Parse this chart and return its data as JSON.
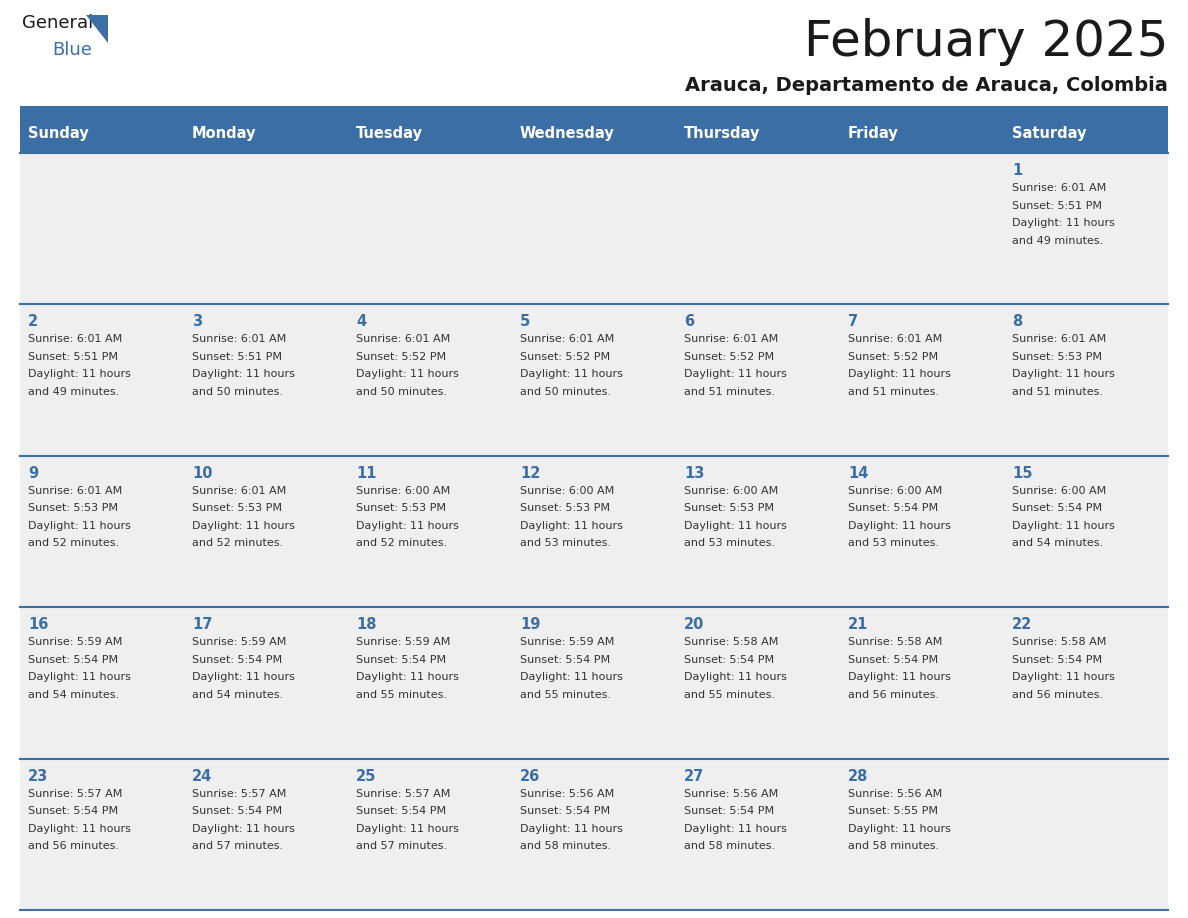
{
  "title": "February 2025",
  "subtitle": "Arauca, Departamento de Arauca, Colombia",
  "days_of_week": [
    "Sunday",
    "Monday",
    "Tuesday",
    "Wednesday",
    "Thursday",
    "Friday",
    "Saturday"
  ],
  "header_bg": "#3b6ea5",
  "header_text": "#ffffff",
  "row_bg_odd": "#efefef",
  "row_bg_even": "#ffffff",
  "date_text_color": "#3b6ea5",
  "info_text_color": "#333333",
  "separator_color": "#3b6ea5",
  "title_color": "#1a1a1a",
  "subtitle_color": "#1a1a1a",
  "logo_general_color": "#1a1a1a",
  "logo_blue_color": "#3b6ea5",
  "logo_triangle_color": "#3b6ea5",
  "calendar": [
    [
      {
        "day": null,
        "info": ""
      },
      {
        "day": null,
        "info": ""
      },
      {
        "day": null,
        "info": ""
      },
      {
        "day": null,
        "info": ""
      },
      {
        "day": null,
        "info": ""
      },
      {
        "day": null,
        "info": ""
      },
      {
        "day": 1,
        "info": "Sunrise: 6:01 AM\nSunset: 5:51 PM\nDaylight: 11 hours\nand 49 minutes."
      }
    ],
    [
      {
        "day": 2,
        "info": "Sunrise: 6:01 AM\nSunset: 5:51 PM\nDaylight: 11 hours\nand 49 minutes."
      },
      {
        "day": 3,
        "info": "Sunrise: 6:01 AM\nSunset: 5:51 PM\nDaylight: 11 hours\nand 50 minutes."
      },
      {
        "day": 4,
        "info": "Sunrise: 6:01 AM\nSunset: 5:52 PM\nDaylight: 11 hours\nand 50 minutes."
      },
      {
        "day": 5,
        "info": "Sunrise: 6:01 AM\nSunset: 5:52 PM\nDaylight: 11 hours\nand 50 minutes."
      },
      {
        "day": 6,
        "info": "Sunrise: 6:01 AM\nSunset: 5:52 PM\nDaylight: 11 hours\nand 51 minutes."
      },
      {
        "day": 7,
        "info": "Sunrise: 6:01 AM\nSunset: 5:52 PM\nDaylight: 11 hours\nand 51 minutes."
      },
      {
        "day": 8,
        "info": "Sunrise: 6:01 AM\nSunset: 5:53 PM\nDaylight: 11 hours\nand 51 minutes."
      }
    ],
    [
      {
        "day": 9,
        "info": "Sunrise: 6:01 AM\nSunset: 5:53 PM\nDaylight: 11 hours\nand 52 minutes."
      },
      {
        "day": 10,
        "info": "Sunrise: 6:01 AM\nSunset: 5:53 PM\nDaylight: 11 hours\nand 52 minutes."
      },
      {
        "day": 11,
        "info": "Sunrise: 6:00 AM\nSunset: 5:53 PM\nDaylight: 11 hours\nand 52 minutes."
      },
      {
        "day": 12,
        "info": "Sunrise: 6:00 AM\nSunset: 5:53 PM\nDaylight: 11 hours\nand 53 minutes."
      },
      {
        "day": 13,
        "info": "Sunrise: 6:00 AM\nSunset: 5:53 PM\nDaylight: 11 hours\nand 53 minutes."
      },
      {
        "day": 14,
        "info": "Sunrise: 6:00 AM\nSunset: 5:54 PM\nDaylight: 11 hours\nand 53 minutes."
      },
      {
        "day": 15,
        "info": "Sunrise: 6:00 AM\nSunset: 5:54 PM\nDaylight: 11 hours\nand 54 minutes."
      }
    ],
    [
      {
        "day": 16,
        "info": "Sunrise: 5:59 AM\nSunset: 5:54 PM\nDaylight: 11 hours\nand 54 minutes."
      },
      {
        "day": 17,
        "info": "Sunrise: 5:59 AM\nSunset: 5:54 PM\nDaylight: 11 hours\nand 54 minutes."
      },
      {
        "day": 18,
        "info": "Sunrise: 5:59 AM\nSunset: 5:54 PM\nDaylight: 11 hours\nand 55 minutes."
      },
      {
        "day": 19,
        "info": "Sunrise: 5:59 AM\nSunset: 5:54 PM\nDaylight: 11 hours\nand 55 minutes."
      },
      {
        "day": 20,
        "info": "Sunrise: 5:58 AM\nSunset: 5:54 PM\nDaylight: 11 hours\nand 55 minutes."
      },
      {
        "day": 21,
        "info": "Sunrise: 5:58 AM\nSunset: 5:54 PM\nDaylight: 11 hours\nand 56 minutes."
      },
      {
        "day": 22,
        "info": "Sunrise: 5:58 AM\nSunset: 5:54 PM\nDaylight: 11 hours\nand 56 minutes."
      }
    ],
    [
      {
        "day": 23,
        "info": "Sunrise: 5:57 AM\nSunset: 5:54 PM\nDaylight: 11 hours\nand 56 minutes."
      },
      {
        "day": 24,
        "info": "Sunrise: 5:57 AM\nSunset: 5:54 PM\nDaylight: 11 hours\nand 57 minutes."
      },
      {
        "day": 25,
        "info": "Sunrise: 5:57 AM\nSunset: 5:54 PM\nDaylight: 11 hours\nand 57 minutes."
      },
      {
        "day": 26,
        "info": "Sunrise: 5:56 AM\nSunset: 5:54 PM\nDaylight: 11 hours\nand 58 minutes."
      },
      {
        "day": 27,
        "info": "Sunrise: 5:56 AM\nSunset: 5:54 PM\nDaylight: 11 hours\nand 58 minutes."
      },
      {
        "day": 28,
        "info": "Sunrise: 5:56 AM\nSunset: 5:55 PM\nDaylight: 11 hours\nand 58 minutes."
      },
      {
        "day": null,
        "info": ""
      }
    ]
  ]
}
